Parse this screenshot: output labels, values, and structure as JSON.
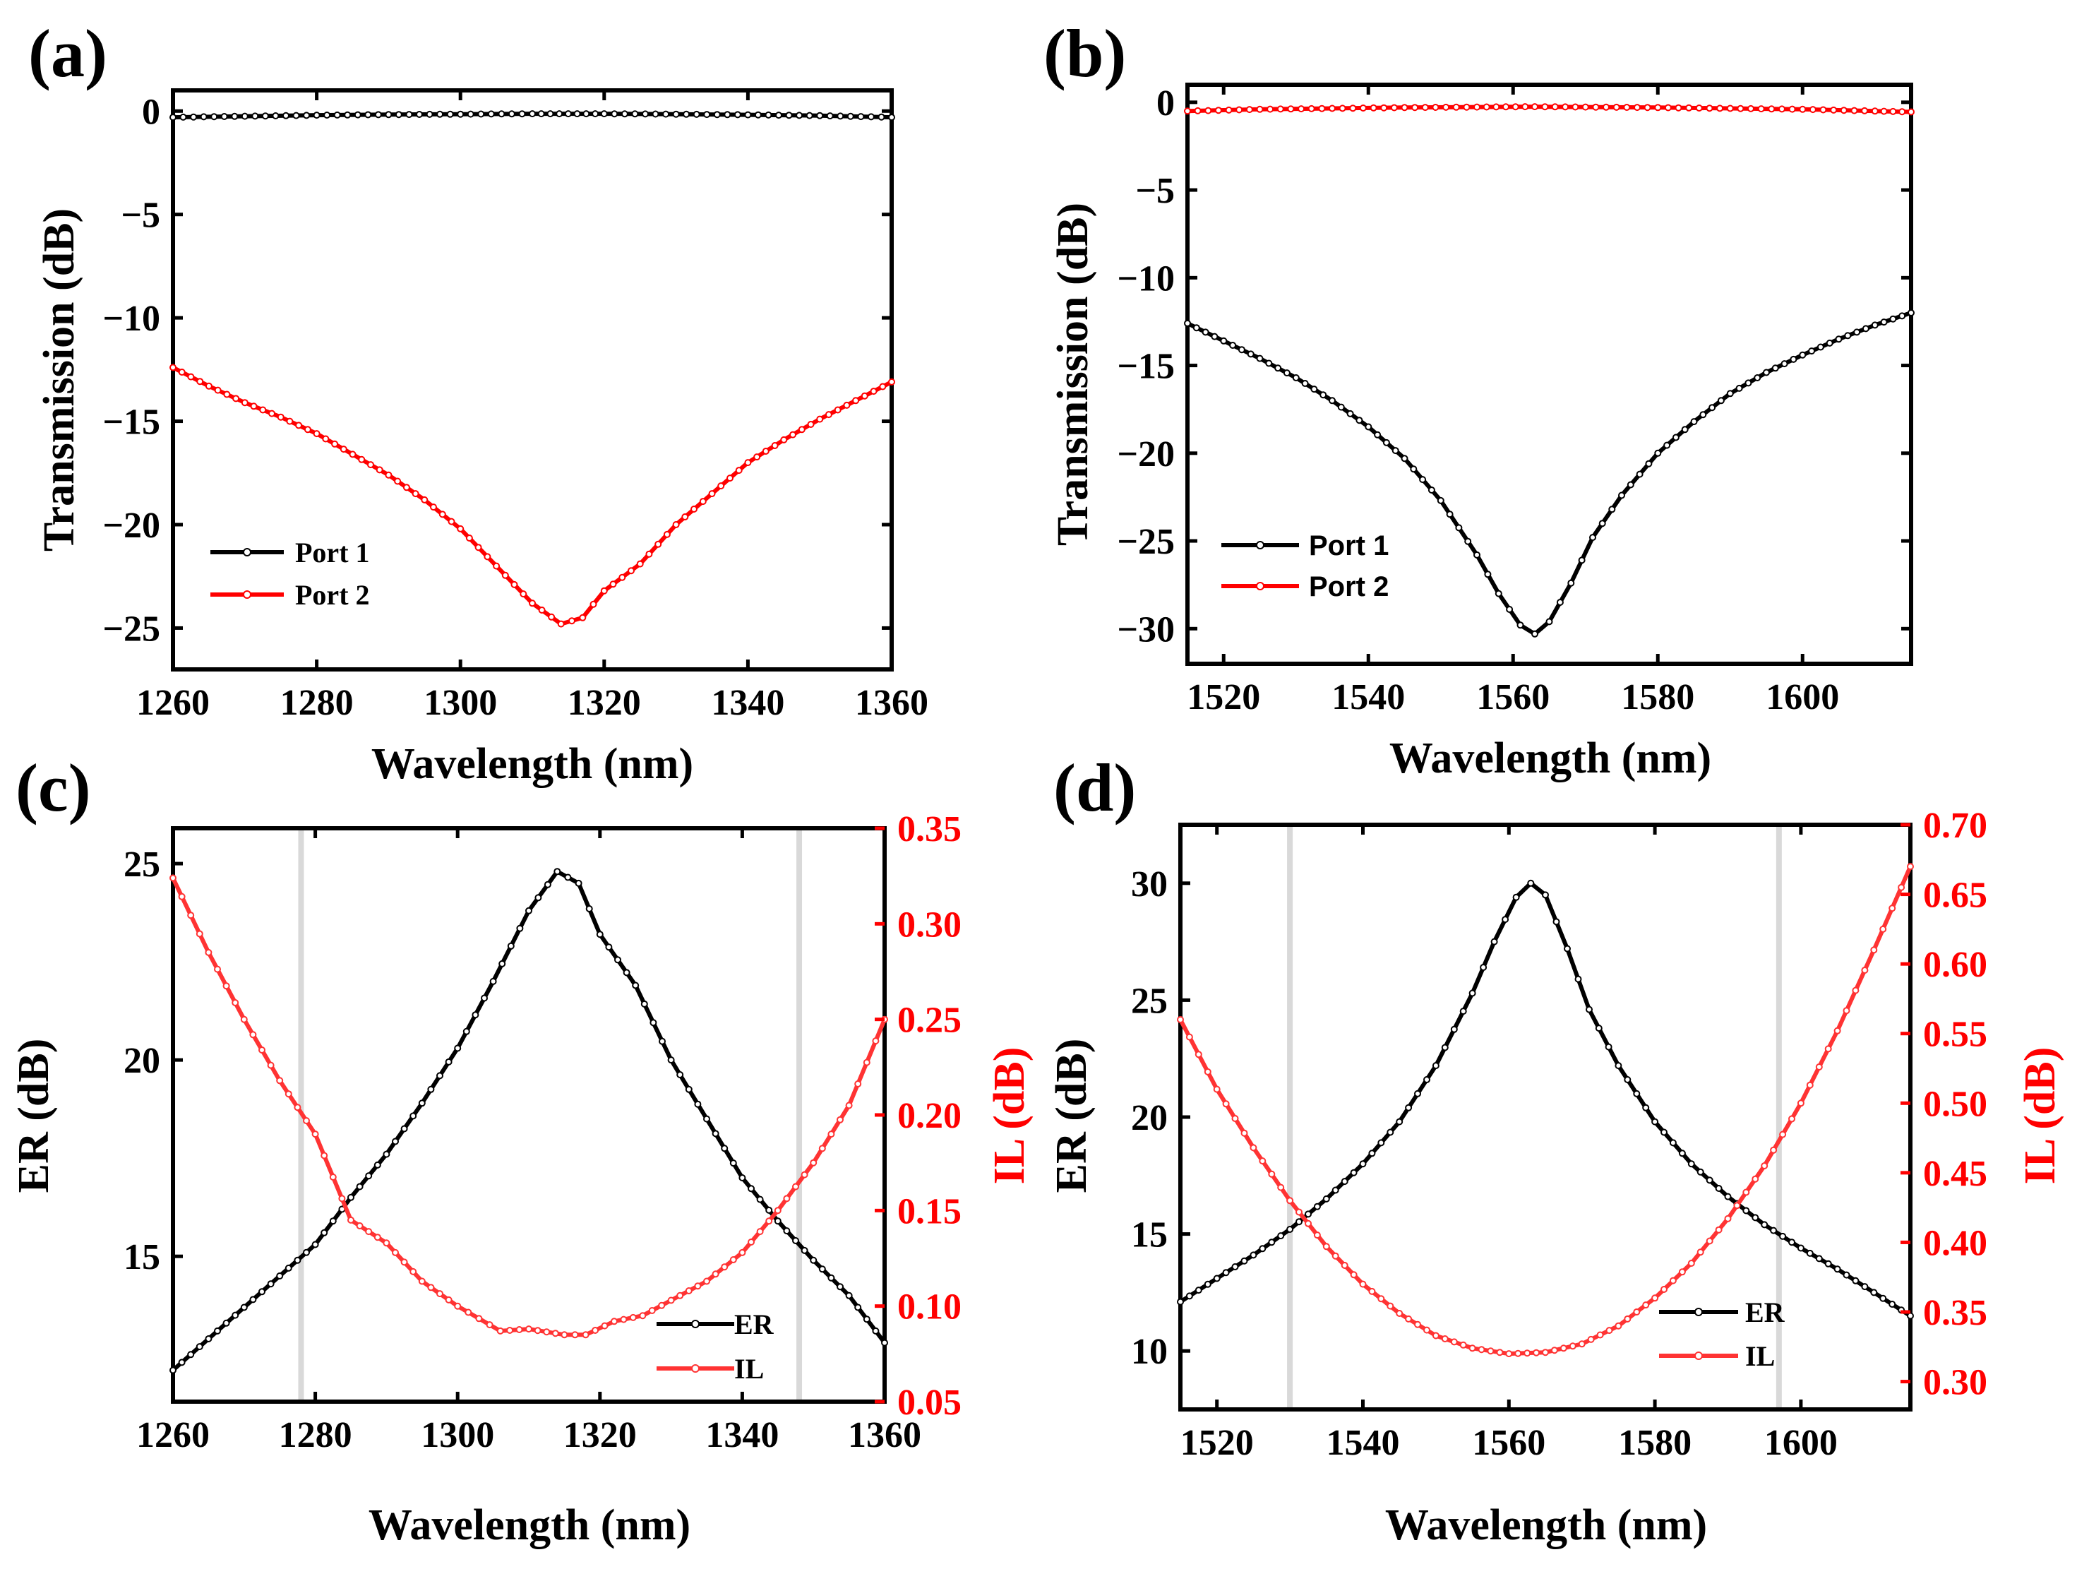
{
  "chart_data": [
    {
      "id": "a",
      "panel_label": "(a)",
      "type": "line",
      "xlabel": "Wavelength (nm)",
      "ylabel": "Transmission (dB)",
      "xlim": [
        1260,
        1360
      ],
      "ylim": [
        -27,
        1
      ],
      "xticks": [
        1260,
        1280,
        1300,
        1320,
        1340,
        1360
      ],
      "yticks": [
        0,
        -5,
        -10,
        -15,
        -20,
        -25
      ],
      "legend_position": "bottom-left",
      "series": [
        {
          "name": "Port 1",
          "color": "#000000",
          "x": [
            1260,
            1270,
            1280,
            1290,
            1300,
            1310,
            1315,
            1320,
            1330,
            1340,
            1350,
            1360
          ],
          "y": [
            -0.3,
            -0.25,
            -0.2,
            -0.17,
            -0.15,
            -0.13,
            -0.13,
            -0.13,
            -0.15,
            -0.18,
            -0.22,
            -0.3
          ]
        },
        {
          "name": "Port 2",
          "color": "#ff0000",
          "x": [
            1260,
            1265,
            1270,
            1275,
            1280,
            1285,
            1290,
            1295,
            1300,
            1305,
            1310,
            1314,
            1317,
            1320,
            1325,
            1330,
            1335,
            1340,
            1345,
            1350,
            1355,
            1360
          ],
          "y": [
            -12.4,
            -13.3,
            -14.1,
            -14.8,
            -15.6,
            -16.6,
            -17.6,
            -18.8,
            -20.2,
            -22.0,
            -23.8,
            -24.8,
            -24.5,
            -23.2,
            -21.9,
            -20.0,
            -18.5,
            -17.0,
            -15.9,
            -14.9,
            -14.0,
            -13.1
          ]
        }
      ]
    },
    {
      "id": "b",
      "panel_label": "(b)",
      "type": "line",
      "xlabel": "Wavelength (nm)",
      "ylabel": "Transmission (dB)",
      "xlim": [
        1515,
        1615
      ],
      "ylim": [
        -32,
        1
      ],
      "xticks": [
        1520,
        1540,
        1560,
        1580,
        1600
      ],
      "yticks": [
        0,
        -5,
        -10,
        -15,
        -20,
        -25,
        -30
      ],
      "legend_position": "bottom-left",
      "series": [
        {
          "name": "Port 1",
          "color": "#000000",
          "x": [
            1515,
            1520,
            1525,
            1530,
            1535,
            1540,
            1545,
            1550,
            1555,
            1558,
            1561,
            1563,
            1565,
            1568,
            1571,
            1575,
            1580,
            1585,
            1590,
            1595,
            1600,
            1605,
            1610,
            1615
          ],
          "y": [
            -12.6,
            -13.6,
            -14.6,
            -15.7,
            -17.0,
            -18.5,
            -20.3,
            -22.7,
            -25.8,
            -28.0,
            -29.8,
            -30.3,
            -29.6,
            -27.4,
            -24.8,
            -22.4,
            -20.0,
            -18.2,
            -16.6,
            -15.4,
            -14.4,
            -13.5,
            -12.7,
            -12.0
          ]
        },
        {
          "name": "Port 2",
          "color": "#ff0000",
          "x": [
            1515,
            1525,
            1535,
            1545,
            1555,
            1563,
            1570,
            1580,
            1590,
            1600,
            1610,
            1615
          ],
          "y": [
            -0.5,
            -0.4,
            -0.35,
            -0.3,
            -0.27,
            -0.25,
            -0.27,
            -0.3,
            -0.35,
            -0.4,
            -0.5,
            -0.55
          ]
        }
      ]
    },
    {
      "id": "c",
      "panel_label": "(c)",
      "type": "line",
      "xlabel": "Wavelength (nm)",
      "ylabel": "ER (dB)",
      "y2label": "IL (dB)",
      "xlim": [
        1260,
        1360
      ],
      "ylim": [
        11.3,
        25.9
      ],
      "y2lim": [
        0.05,
        0.35
      ],
      "xticks": [
        1260,
        1280,
        1300,
        1320,
        1340,
        1360
      ],
      "yticks": [
        15,
        20,
        25
      ],
      "y2ticks": [
        0.05,
        0.1,
        0.15,
        0.2,
        0.25,
        0.3,
        0.35
      ],
      "y2tick_labels": [
        "0.05",
        "0.10",
        "0.15",
        "0.20",
        "0.25",
        "0.30",
        "0.35"
      ],
      "vlines": [
        1278,
        1348
      ],
      "legend_position": "bottom-right",
      "series": [
        {
          "name": "ER",
          "color": "#000000",
          "axis": "left",
          "x": [
            1260,
            1265,
            1270,
            1275,
            1280,
            1285,
            1290,
            1295,
            1300,
            1305,
            1310,
            1314,
            1317,
            1320,
            1325,
            1330,
            1335,
            1340,
            1345,
            1350,
            1355,
            1360
          ],
          "y": [
            12.1,
            12.9,
            13.7,
            14.5,
            15.3,
            16.5,
            17.6,
            18.9,
            20.3,
            22.0,
            23.8,
            24.8,
            24.5,
            23.2,
            21.9,
            20.0,
            18.5,
            17.0,
            15.9,
            14.9,
            14.0,
            12.8
          ]
        },
        {
          "name": "IL",
          "color": "#ff3333",
          "axis": "right",
          "x": [
            1260,
            1265,
            1270,
            1275,
            1280,
            1285,
            1290,
            1295,
            1300,
            1306,
            1310,
            1315,
            1318,
            1322,
            1326,
            1330,
            1335,
            1340,
            1345,
            1350,
            1355,
            1360
          ],
          "y": [
            0.324,
            0.285,
            0.25,
            0.218,
            0.19,
            0.145,
            0.133,
            0.113,
            0.1,
            0.087,
            0.088,
            0.085,
            0.085,
            0.092,
            0.095,
            0.103,
            0.113,
            0.128,
            0.15,
            0.175,
            0.205,
            0.25
          ]
        }
      ]
    },
    {
      "id": "d",
      "panel_label": "(d)",
      "type": "line",
      "xlabel": "Wavelength (nm)",
      "ylabel": "ER (dB)",
      "y2label": "IL (dB)",
      "xlim": [
        1515,
        1615
      ],
      "ylim": [
        7.5,
        32.5
      ],
      "y2lim": [
        0.28,
        0.7
      ],
      "xticks": [
        1520,
        1540,
        1560,
        1580,
        1600
      ],
      "yticks": [
        10,
        15,
        20,
        25,
        30
      ],
      "y2ticks": [
        0.3,
        0.35,
        0.4,
        0.45,
        0.5,
        0.55,
        0.6,
        0.65,
        0.7
      ],
      "y2tick_labels": [
        "0.30",
        "0.35",
        "0.40",
        "0.45",
        "0.50",
        "0.55",
        "0.60",
        "0.65",
        "0.70"
      ],
      "vlines": [
        1530,
        1597
      ],
      "legend_position": "bottom-right",
      "series": [
        {
          "name": "ER",
          "color": "#000000",
          "axis": "left",
          "x": [
            1515,
            1520,
            1525,
            1530,
            1535,
            1540,
            1545,
            1550,
            1555,
            1558,
            1561,
            1563,
            1565,
            1568,
            1571,
            1575,
            1580,
            1585,
            1590,
            1595,
            1600,
            1605,
            1610,
            1615
          ],
          "y": [
            12.1,
            13.1,
            14.1,
            15.2,
            16.5,
            18.0,
            19.8,
            22.2,
            25.3,
            27.5,
            29.4,
            30.0,
            29.5,
            27.2,
            24.6,
            22.2,
            19.8,
            18.0,
            16.6,
            15.4,
            14.4,
            13.5,
            12.5,
            11.5
          ]
        },
        {
          "name": "IL",
          "color": "#ff3333",
          "axis": "right",
          "x": [
            1515,
            1520,
            1525,
            1530,
            1535,
            1540,
            1545,
            1550,
            1555,
            1560,
            1565,
            1570,
            1575,
            1580,
            1585,
            1590,
            1595,
            1600,
            1605,
            1610,
            1615
          ],
          "y": [
            0.56,
            0.51,
            0.468,
            0.43,
            0.397,
            0.37,
            0.349,
            0.333,
            0.324,
            0.32,
            0.321,
            0.327,
            0.34,
            0.36,
            0.385,
            0.417,
            0.455,
            0.5,
            0.552,
            0.61,
            0.67
          ]
        }
      ]
    }
  ]
}
